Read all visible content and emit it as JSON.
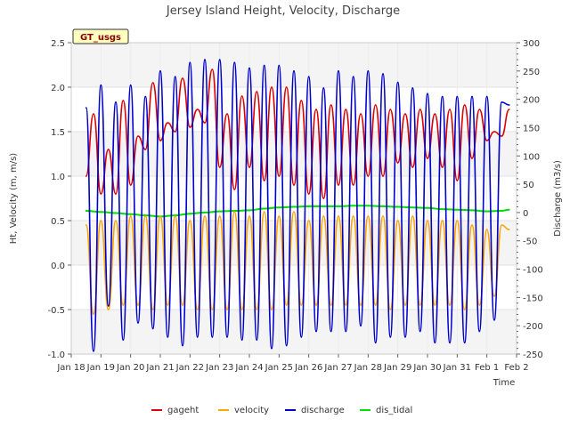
{
  "chart_data": {
    "type": "line",
    "title": "Jersey Island Height, Velocity, Discharge",
    "badge": "GT_usgs",
    "xlabel": "Time",
    "ylabel_left": "Ht, Velocity (m, m/s)",
    "ylabel_right": "Discharge (m3/s)",
    "xlim_days": [
      0,
      15
    ],
    "x_ticks": [
      "Jan 18",
      "Jan 19",
      "Jan 20",
      "Jan 21",
      "Jan 22",
      "Jan 23",
      "Jan 24",
      "Jan 25",
      "Jan 26",
      "Jan 27",
      "Jan 28",
      "Jan 29",
      "Jan 30",
      "Jan 31",
      "Feb 1",
      "Feb 2"
    ],
    "ylim_left": [
      -1.0,
      2.5
    ],
    "y_ticks_left": [
      "-1.0",
      "-0.5",
      "0.0",
      "0.5",
      "1.0",
      "1.5",
      "2.0",
      "2.5"
    ],
    "ylim_right": [
      -250,
      300
    ],
    "y_ticks_right": [
      "-250",
      "-200",
      "-150",
      "-100",
      "-50",
      "0",
      "50",
      "100",
      "150",
      "200",
      "250",
      "300"
    ],
    "series": [
      {
        "name": "gageht",
        "axis": "left",
        "color": "#dd0000",
        "x": [
          0.5,
          0.75,
          1.0,
          1.25,
          1.5,
          1.75,
          2.0,
          2.25,
          2.5,
          2.75,
          3.0,
          3.25,
          3.5,
          3.75,
          4.0,
          4.25,
          4.5,
          4.75,
          5.0,
          5.25,
          5.5,
          5.75,
          6.0,
          6.25,
          6.5,
          6.75,
          7.0,
          7.25,
          7.5,
          7.75,
          8.0,
          8.25,
          8.5,
          8.75,
          9.0,
          9.25,
          9.5,
          9.75,
          10.0,
          10.25,
          10.5,
          10.75,
          11.0,
          11.25,
          11.5,
          11.75,
          12.0,
          12.25,
          12.5,
          12.75,
          13.0,
          13.25,
          13.5,
          13.75,
          14.0,
          14.25,
          14.5,
          14.75
        ],
        "values": [
          1.0,
          1.7,
          0.8,
          1.3,
          0.8,
          1.85,
          0.9,
          1.45,
          1.3,
          2.05,
          1.4,
          1.6,
          1.5,
          2.1,
          1.55,
          1.75,
          1.6,
          2.2,
          1.1,
          1.7,
          0.85,
          1.9,
          1.1,
          1.95,
          0.95,
          2.0,
          1.0,
          2.0,
          0.9,
          1.85,
          0.8,
          1.75,
          0.75,
          1.8,
          0.9,
          1.75,
          0.9,
          1.7,
          1.0,
          1.8,
          1.0,
          1.75,
          1.15,
          1.7,
          1.1,
          1.75,
          1.2,
          1.7,
          1.1,
          1.75,
          0.95,
          1.8,
          1.2,
          1.75,
          1.4,
          1.5,
          1.45,
          1.75
        ]
      },
      {
        "name": "velocity",
        "axis": "left",
        "color": "#ffa500",
        "x": [
          0.5,
          0.75,
          1.0,
          1.25,
          1.5,
          1.75,
          2.0,
          2.25,
          2.5,
          2.75,
          3.0,
          3.25,
          3.5,
          3.75,
          4.0,
          4.25,
          4.5,
          4.75,
          5.0,
          5.25,
          5.5,
          5.75,
          6.0,
          6.25,
          6.5,
          6.75,
          7.0,
          7.25,
          7.5,
          7.75,
          8.0,
          8.25,
          8.5,
          8.75,
          9.0,
          9.25,
          9.5,
          9.75,
          10.0,
          10.25,
          10.5,
          10.75,
          11.0,
          11.25,
          11.5,
          11.75,
          12.0,
          12.25,
          12.5,
          12.75,
          13.0,
          13.25,
          13.5,
          13.75,
          14.0,
          14.25,
          14.5,
          14.75
        ],
        "values": [
          0.45,
          -0.55,
          0.5,
          -0.5,
          0.5,
          -0.45,
          0.55,
          -0.45,
          0.55,
          -0.5,
          0.55,
          -0.45,
          0.55,
          -0.45,
          0.5,
          -0.5,
          0.55,
          -0.5,
          0.55,
          -0.5,
          0.6,
          -0.5,
          0.55,
          -0.5,
          0.6,
          -0.5,
          0.55,
          -0.45,
          0.6,
          -0.45,
          0.5,
          -0.45,
          0.55,
          -0.45,
          0.55,
          -0.45,
          0.55,
          -0.45,
          0.55,
          -0.45,
          0.55,
          -0.5,
          0.5,
          -0.45,
          0.55,
          -0.45,
          0.5,
          -0.45,
          0.5,
          -0.45,
          0.5,
          -0.5,
          0.45,
          -0.45,
          0.4,
          -0.35,
          0.45,
          0.4
        ]
      },
      {
        "name": "discharge",
        "axis": "right",
        "color": "#0000cc",
        "x": [
          0.5,
          0.75,
          1.0,
          1.25,
          1.5,
          1.75,
          2.0,
          2.25,
          2.5,
          2.75,
          3.0,
          3.25,
          3.5,
          3.75,
          4.0,
          4.25,
          4.5,
          4.75,
          5.0,
          5.25,
          5.5,
          5.75,
          6.0,
          6.25,
          6.5,
          6.75,
          7.0,
          7.25,
          7.5,
          7.75,
          8.0,
          8.25,
          8.5,
          8.75,
          9.0,
          9.25,
          9.5,
          9.75,
          10.0,
          10.25,
          10.5,
          10.75,
          11.0,
          11.25,
          11.5,
          11.75,
          12.0,
          12.25,
          12.5,
          12.75,
          13.0,
          13.25,
          13.5,
          13.75,
          14.0,
          14.25,
          14.5,
          14.75
        ],
        "values": [
          185,
          -245,
          225,
          -165,
          195,
          -225,
          225,
          -195,
          205,
          -205,
          250,
          -220,
          240,
          -235,
          265,
          -220,
          270,
          -220,
          270,
          -220,
          265,
          -225,
          255,
          -225,
          260,
          -240,
          260,
          -235,
          250,
          -220,
          240,
          -210,
          220,
          -210,
          250,
          -210,
          240,
          -200,
          250,
          -230,
          245,
          -220,
          230,
          -220,
          220,
          -210,
          210,
          -230,
          205,
          -230,
          205,
          -230,
          205,
          -210,
          205,
          -190,
          195,
          190
        ]
      },
      {
        "name": "dis_tidal",
        "axis": "right",
        "color": "#00dd00",
        "x": [
          0.5,
          1.0,
          1.5,
          2.0,
          2.5,
          3.0,
          3.5,
          4.0,
          4.5,
          5.0,
          5.5,
          6.0,
          6.5,
          7.0,
          7.5,
          8.0,
          8.5,
          9.0,
          9.5,
          10.0,
          10.5,
          11.0,
          11.5,
          12.0,
          12.5,
          13.0,
          13.5,
          14.0,
          14.5,
          14.75
        ],
        "values": [
          3,
          1,
          -1,
          -3,
          -5,
          -7,
          -5,
          -2,
          0,
          2,
          3,
          4,
          7,
          9,
          10,
          11,
          11,
          11,
          12,
          12,
          11,
          10,
          9,
          8,
          6,
          5,
          4,
          2,
          3,
          5
        ]
      }
    ]
  }
}
